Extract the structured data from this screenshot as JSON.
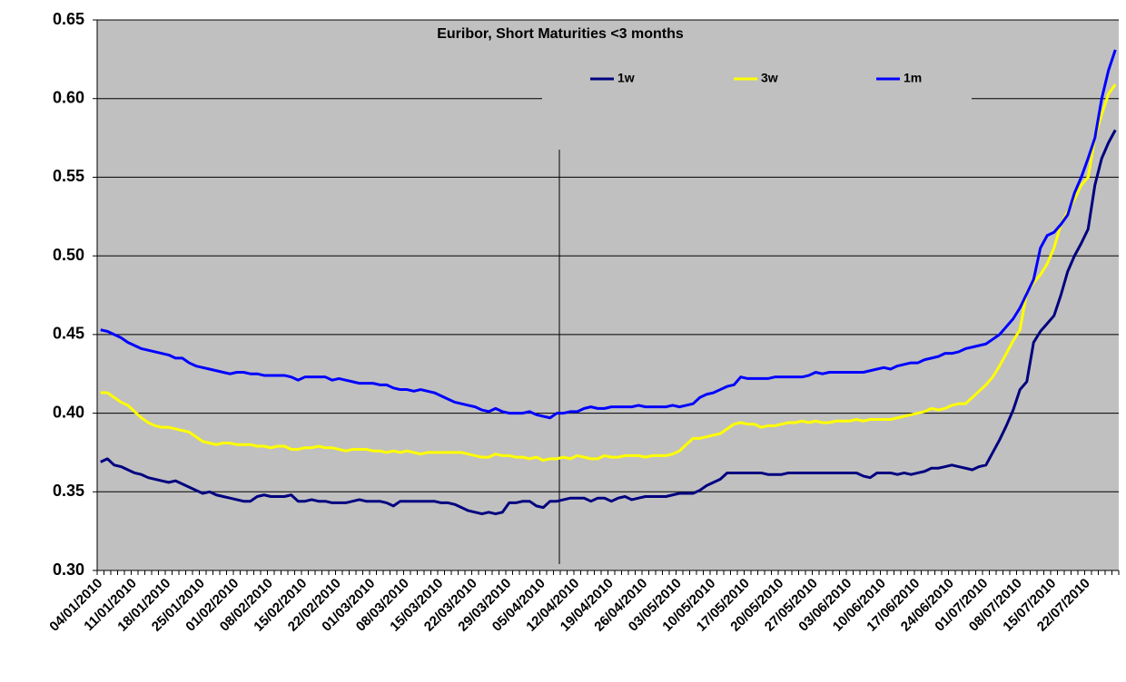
{
  "chart_data": {
    "type": "line",
    "title": "Euribor, Short Maturities <3 months",
    "categories": [
      "04/01/2010",
      null,
      null,
      null,
      null,
      "11/01/2010",
      null,
      null,
      null,
      null,
      "18/01/2010",
      null,
      null,
      null,
      null,
      "25/01/2010",
      null,
      null,
      null,
      null,
      "01/02/2010",
      null,
      null,
      null,
      null,
      "08/02/2010",
      null,
      null,
      null,
      null,
      "15/02/2010",
      null,
      null,
      null,
      null,
      "22/02/2010",
      null,
      null,
      null,
      null,
      "01/03/2010",
      null,
      null,
      null,
      null,
      "08/03/2010",
      null,
      null,
      null,
      null,
      "15/03/2010",
      null,
      null,
      null,
      null,
      "22/03/2010",
      null,
      null,
      null,
      null,
      "29/03/2010",
      null,
      null,
      null,
      null,
      "05/04/2010",
      null,
      null,
      null,
      null,
      "12/04/2010",
      null,
      null,
      null,
      null,
      "19/04/2010",
      null,
      null,
      null,
      null,
      "26/04/2010",
      null,
      null,
      null,
      null,
      "03/05/2010",
      null,
      null,
      null,
      null,
      "10/05/2010",
      null,
      null,
      null,
      null,
      "17/05/2010",
      null,
      null,
      null,
      null,
      "20/05/2010",
      null,
      null,
      null,
      null,
      "27/05/2010",
      null,
      null,
      null,
      null,
      "03/06/2010",
      null,
      null,
      null,
      null,
      "10/06/2010",
      null,
      null,
      null,
      null,
      "17/06/2010",
      null,
      null,
      null,
      null,
      "24/06/2010",
      null,
      null,
      null,
      null,
      "01/07/2010",
      null,
      null,
      null,
      null,
      "08/07/2010",
      null,
      null,
      null,
      null,
      "15/07/2010",
      null,
      null,
      null,
      null,
      "22/07/2010",
      null,
      null,
      null,
      null
    ],
    "series": [
      {
        "name": "1w",
        "color": "#000080",
        "values": [
          0.369,
          0.371,
          0.367,
          0.366,
          0.364,
          0.362,
          0.361,
          0.359,
          0.358,
          0.357,
          0.356,
          0.357,
          0.355,
          0.353,
          0.351,
          0.349,
          0.35,
          0.348,
          0.347,
          0.346,
          0.345,
          0.344,
          0.344,
          0.347,
          0.348,
          0.347,
          0.347,
          0.347,
          0.348,
          0.344,
          0.344,
          0.345,
          0.344,
          0.344,
          0.343,
          0.343,
          0.343,
          0.344,
          0.345,
          0.344,
          0.344,
          0.344,
          0.343,
          0.341,
          0.344,
          0.344,
          0.344,
          0.344,
          0.344,
          0.344,
          0.343,
          0.343,
          0.342,
          0.34,
          0.338,
          0.337,
          0.336,
          0.337,
          0.336,
          0.337,
          0.343,
          0.343,
          0.344,
          0.344,
          0.341,
          0.34,
          0.344,
          0.344,
          0.345,
          0.346,
          0.346,
          0.346,
          0.344,
          0.346,
          0.346,
          0.344,
          0.346,
          0.347,
          0.345,
          0.346,
          0.347,
          0.347,
          0.347,
          0.347,
          0.348,
          0.349,
          0.349,
          0.349,
          0.351,
          0.354,
          0.356,
          0.358,
          0.362,
          0.362,
          0.362,
          0.362,
          0.362,
          0.362,
          0.361,
          0.361,
          0.361,
          0.362,
          0.362,
          0.362,
          0.362,
          0.362,
          0.362,
          0.362,
          0.362,
          0.362,
          0.362,
          0.362,
          0.36,
          0.359,
          0.362,
          0.362,
          0.362,
          0.361,
          0.362,
          0.361,
          0.362,
          0.363,
          0.365,
          0.365,
          0.366,
          0.367,
          0.366,
          0.365,
          0.364,
          0.366,
          0.367,
          0.375,
          0.383,
          0.392,
          0.402,
          0.415,
          0.42,
          0.445,
          0.452,
          0.457,
          0.462,
          0.475,
          0.49,
          0.5,
          0.508,
          0.517,
          0.545,
          0.562,
          0.572,
          0.58
        ]
      },
      {
        "name": "3w",
        "color": "#ffff00",
        "values": [
          0.413,
          0.413,
          0.41,
          0.407,
          0.405,
          0.401,
          0.397,
          0.394,
          0.392,
          0.391,
          0.391,
          0.39,
          0.389,
          0.388,
          0.385,
          0.382,
          0.381,
          0.38,
          0.381,
          0.381,
          0.38,
          0.38,
          0.38,
          0.379,
          0.379,
          0.378,
          0.379,
          0.379,
          0.377,
          0.377,
          0.378,
          0.378,
          0.379,
          0.378,
          0.378,
          0.377,
          0.376,
          0.377,
          0.377,
          0.377,
          0.376,
          0.376,
          0.375,
          0.376,
          0.375,
          0.376,
          0.375,
          0.374,
          0.375,
          0.375,
          0.375,
          0.375,
          0.375,
          0.375,
          0.374,
          0.373,
          0.372,
          0.372,
          0.374,
          0.373,
          0.373,
          0.372,
          0.372,
          0.371,
          0.372,
          0.37,
          0.371,
          0.371,
          0.372,
          0.371,
          0.373,
          0.372,
          0.371,
          0.371,
          0.373,
          0.372,
          0.372,
          0.373,
          0.373,
          0.373,
          0.372,
          0.373,
          0.373,
          0.373,
          0.374,
          0.376,
          0.38,
          0.384,
          0.384,
          0.385,
          0.386,
          0.387,
          0.39,
          0.393,
          0.394,
          0.393,
          0.393,
          0.391,
          0.392,
          0.392,
          0.393,
          0.394,
          0.394,
          0.395,
          0.394,
          0.395,
          0.394,
          0.394,
          0.395,
          0.395,
          0.395,
          0.396,
          0.395,
          0.396,
          0.396,
          0.396,
          0.396,
          0.397,
          0.398,
          0.399,
          0.4,
          0.401,
          0.403,
          0.402,
          0.403,
          0.405,
          0.406,
          0.406,
          0.41,
          0.414,
          0.418,
          0.423,
          0.43,
          0.438,
          0.446,
          0.453,
          0.477,
          0.483,
          0.488,
          0.495,
          0.505,
          0.52,
          0.528,
          0.536,
          0.545,
          0.55,
          0.575,
          0.59,
          0.603,
          0.609
        ]
      },
      {
        "name": "1m",
        "color": "#0000ff",
        "values": [
          0.453,
          0.452,
          0.45,
          0.448,
          0.445,
          0.443,
          0.441,
          0.44,
          0.439,
          0.438,
          0.437,
          0.435,
          0.435,
          0.432,
          0.43,
          0.429,
          0.428,
          0.427,
          0.426,
          0.425,
          0.426,
          0.426,
          0.425,
          0.425,
          0.424,
          0.424,
          0.424,
          0.424,
          0.423,
          0.421,
          0.423,
          0.423,
          0.423,
          0.423,
          0.421,
          0.422,
          0.421,
          0.42,
          0.419,
          0.419,
          0.419,
          0.418,
          0.418,
          0.416,
          0.415,
          0.415,
          0.414,
          0.415,
          0.414,
          0.413,
          0.411,
          0.409,
          0.407,
          0.406,
          0.405,
          0.404,
          0.402,
          0.401,
          0.403,
          0.401,
          0.4,
          0.4,
          0.4,
          0.401,
          0.399,
          0.398,
          0.397,
          0.4,
          0.4,
          0.401,
          0.401,
          0.403,
          0.404,
          0.403,
          0.403,
          0.404,
          0.404,
          0.404,
          0.404,
          0.405,
          0.404,
          0.404,
          0.404,
          0.404,
          0.405,
          0.404,
          0.405,
          0.406,
          0.41,
          0.412,
          0.413,
          0.415,
          0.417,
          0.418,
          0.423,
          0.422,
          0.422,
          0.422,
          0.422,
          0.423,
          0.423,
          0.423,
          0.423,
          0.423,
          0.424,
          0.426,
          0.425,
          0.426,
          0.426,
          0.426,
          0.426,
          0.426,
          0.426,
          0.427,
          0.428,
          0.429,
          0.428,
          0.43,
          0.431,
          0.432,
          0.432,
          0.434,
          0.435,
          0.436,
          0.438,
          0.438,
          0.439,
          0.441,
          0.442,
          0.443,
          0.444,
          0.447,
          0.45,
          0.455,
          0.46,
          0.467,
          0.476,
          0.485,
          0.505,
          0.513,
          0.515,
          0.52,
          0.526,
          0.54,
          0.55,
          0.562,
          0.575,
          0.6,
          0.618,
          0.631
        ]
      }
    ],
    "ylim": [
      0.3,
      0.65
    ],
    "yticks": [
      {
        "value": 0.3,
        "label": "0.30"
      },
      0.35,
      {
        "value": 0.4,
        "label": "0.40"
      },
      0.45,
      {
        "value": 0.5,
        "label": "0.50"
      },
      0.55,
      {
        "value": 0.6,
        "label": "0.60"
      },
      0.65
    ],
    "grid": true,
    "legend": "top"
  }
}
